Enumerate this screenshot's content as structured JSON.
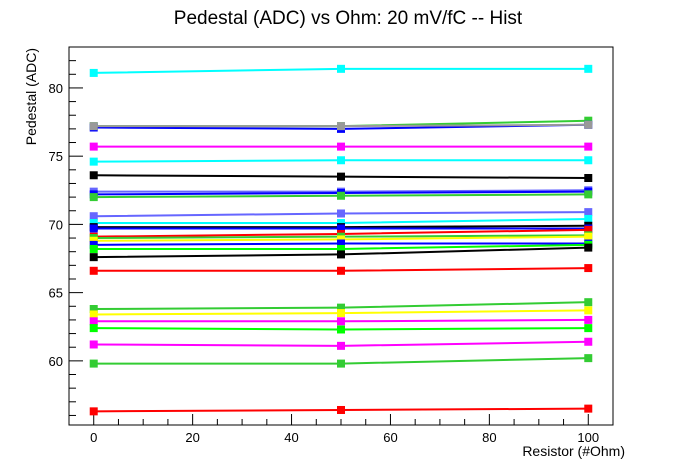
{
  "chart_data": {
    "type": "line",
    "title": "Pedestal (ADC) vs Ohm: 20 mV/fC -- Hist",
    "xlabel": "Resistor (#Ohm)",
    "ylabel": "Pedestal (ADC)",
    "xlim": [
      -5,
      105
    ],
    "ylim": [
      55.3,
      83.0
    ],
    "xticks": [
      "0",
      "20",
      "40",
      "60",
      "80",
      "100"
    ],
    "yticks": [
      "60",
      "65",
      "70",
      "75",
      "80"
    ],
    "x": [
      0,
      50,
      100
    ],
    "grid": false,
    "legend": "none",
    "series": [
      {
        "color": "#00ffff",
        "values": [
          81.1,
          81.4,
          81.4
        ]
      },
      {
        "color": "#33cc33",
        "values": [
          77.2,
          77.2,
          77.6
        ]
      },
      {
        "color": "#0000ff",
        "values": [
          77.1,
          77.0,
          77.3
        ]
      },
      {
        "color": "#999999",
        "values": [
          77.2,
          77.2,
          77.3
        ]
      },
      {
        "color": "#ff00ff",
        "values": [
          75.7,
          75.7,
          75.7
        ]
      },
      {
        "color": "#00ffff",
        "values": [
          74.6,
          74.7,
          74.7
        ]
      },
      {
        "color": "#000000",
        "values": [
          73.6,
          73.5,
          73.4
        ]
      },
      {
        "color": "#6666ff",
        "values": [
          72.4,
          72.4,
          72.5
        ]
      },
      {
        "color": "#0000ff",
        "values": [
          72.2,
          72.3,
          72.4
        ]
      },
      {
        "color": "#33cc33",
        "values": [
          72.0,
          72.1,
          72.2
        ]
      },
      {
        "color": "#6666ff",
        "values": [
          70.6,
          70.8,
          70.9
        ]
      },
      {
        "color": "#00ffff",
        "values": [
          70.1,
          70.1,
          70.4
        ]
      },
      {
        "color": "#000000",
        "values": [
          69.8,
          69.8,
          69.9
        ]
      },
      {
        "color": "#0000ff",
        "values": [
          69.7,
          69.7,
          69.7
        ]
      },
      {
        "color": "#ff0000",
        "values": [
          69.1,
          69.3,
          69.6
        ]
      },
      {
        "color": "#33cc33",
        "values": [
          69.0,
          69.1,
          69.2
        ]
      },
      {
        "color": "#ffff00",
        "values": [
          68.8,
          68.9,
          69.1
        ]
      },
      {
        "color": "#0000ff",
        "values": [
          68.5,
          68.6,
          68.6
        ]
      },
      {
        "color": "#00ff00",
        "values": [
          68.2,
          68.2,
          68.5
        ]
      },
      {
        "color": "#000000",
        "values": [
          67.6,
          67.8,
          68.3
        ]
      },
      {
        "color": "#ff0000",
        "values": [
          66.6,
          66.6,
          66.8
        ]
      },
      {
        "color": "#33cc33",
        "values": [
          63.8,
          63.9,
          64.3
        ]
      },
      {
        "color": "#ffff00",
        "values": [
          63.4,
          63.5,
          63.7
        ]
      },
      {
        "color": "#ff00ff",
        "values": [
          62.9,
          62.9,
          63.0
        ]
      },
      {
        "color": "#00ff00",
        "values": [
          62.4,
          62.3,
          62.4
        ]
      },
      {
        "color": "#ff00ff",
        "values": [
          61.2,
          61.1,
          61.4
        ]
      },
      {
        "color": "#33cc33",
        "values": [
          59.8,
          59.8,
          60.2
        ]
      },
      {
        "color": "#ff0000",
        "values": [
          56.3,
          56.4,
          56.5
        ]
      }
    ]
  }
}
